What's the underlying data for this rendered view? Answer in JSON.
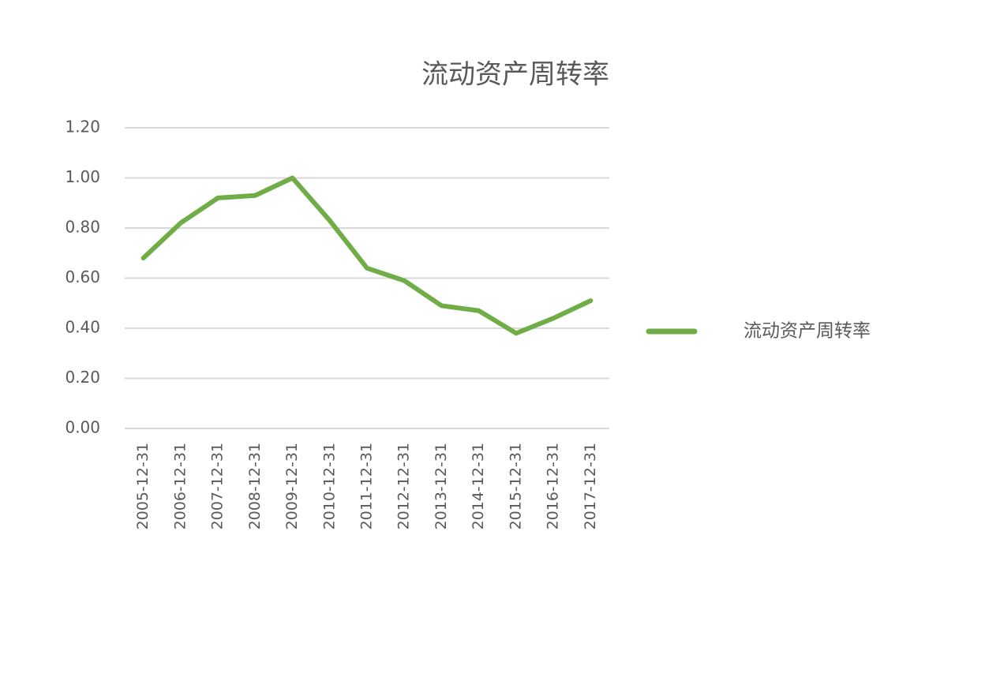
{
  "chart_data": {
    "type": "line",
    "title": "流动资产周转率",
    "categories": [
      "2005-12-31",
      "2006-12-31",
      "2007-12-31",
      "2008-12-31",
      "2009-12-31",
      "2010-12-31",
      "2011-12-31",
      "2012-12-31",
      "2013-12-31",
      "2014-12-31",
      "2015-12-31",
      "2016-12-31",
      "2017-12-31"
    ],
    "series": [
      {
        "name": "流动资产周转率",
        "color": "#70ad47",
        "values": [
          0.68,
          0.82,
          0.92,
          0.93,
          1.0,
          0.83,
          0.64,
          0.59,
          0.49,
          0.47,
          0.38,
          0.44,
          0.51
        ]
      }
    ],
    "ylim": [
      0,
      1.2
    ],
    "yticks": [
      {
        "value": 0,
        "label": "0.00"
      },
      {
        "value": 0.2,
        "label": "0.20"
      },
      {
        "value": 0.4,
        "label": "0.40"
      },
      {
        "value": 0.6,
        "label": "0.60"
      },
      {
        "value": 0.8,
        "label": "0.80"
      },
      {
        "value": 1,
        "label": "1.00"
      },
      {
        "value": 1.2,
        "label": "1.20"
      }
    ],
    "grid": true,
    "legend": "right"
  }
}
